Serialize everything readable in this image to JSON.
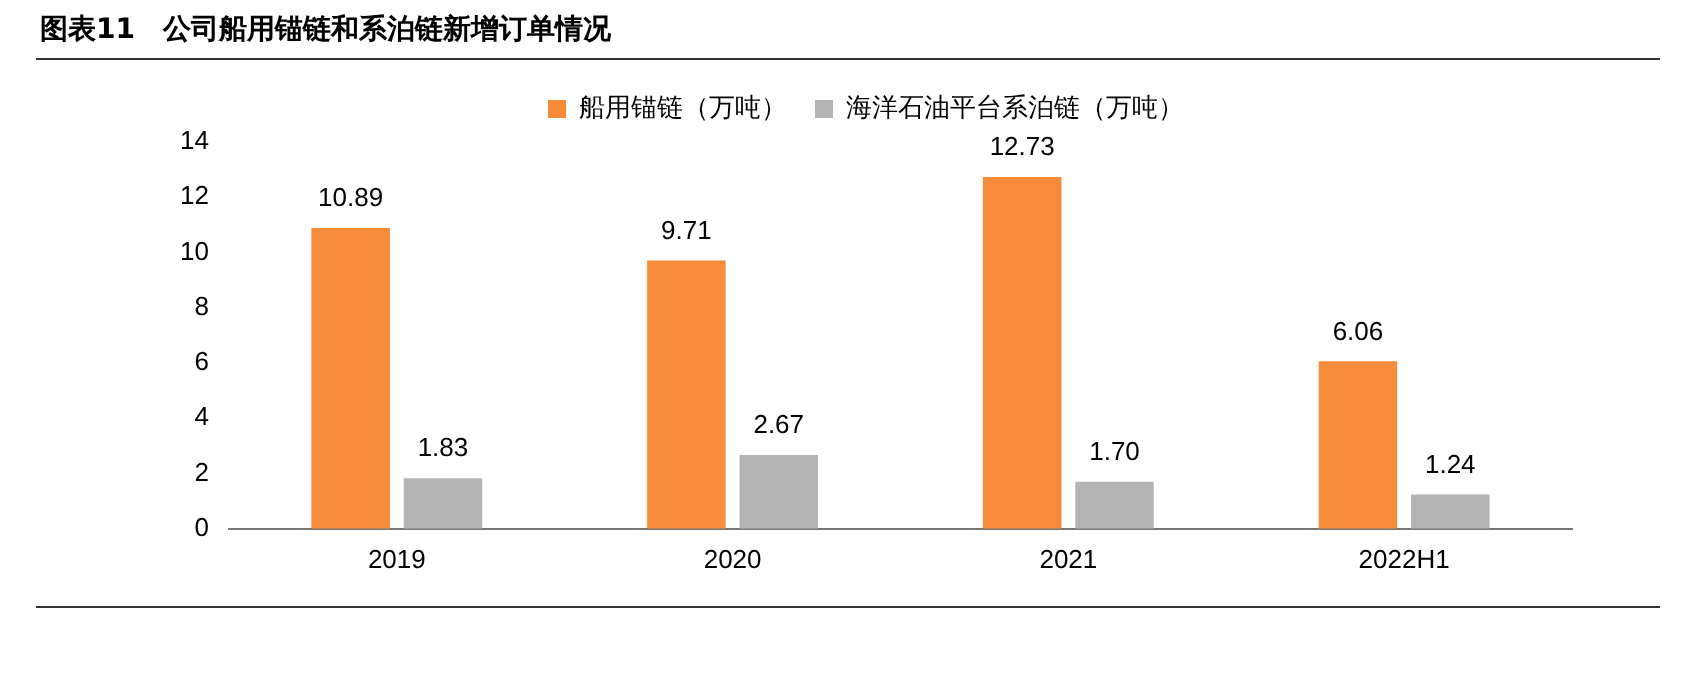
{
  "chart_data": {
    "type": "bar",
    "title": "图表11　公司船用锚链和系泊链新增订单情况",
    "categories": [
      "2019",
      "2020",
      "2021",
      "2022H1"
    ],
    "series": [
      {
        "name": "船用锚链（万吨）",
        "color": "#f88b3a",
        "values": [
          10.89,
          9.71,
          12.73,
          6.06
        ],
        "value_labels": [
          "10.89",
          "9.71",
          "12.73",
          "6.06"
        ]
      },
      {
        "name": "海洋石油平台系泊链（万吨）",
        "color": "#b4b4b4",
        "values": [
          1.83,
          2.67,
          1.7,
          1.24
        ],
        "value_labels": [
          "1.83",
          "2.67",
          "1.70",
          "1.24"
        ]
      }
    ],
    "ylim": [
      0,
      14
    ],
    "yticks": [
      0,
      2,
      4,
      6,
      8,
      10,
      12,
      14
    ],
    "grid": false,
    "legend": "top"
  }
}
